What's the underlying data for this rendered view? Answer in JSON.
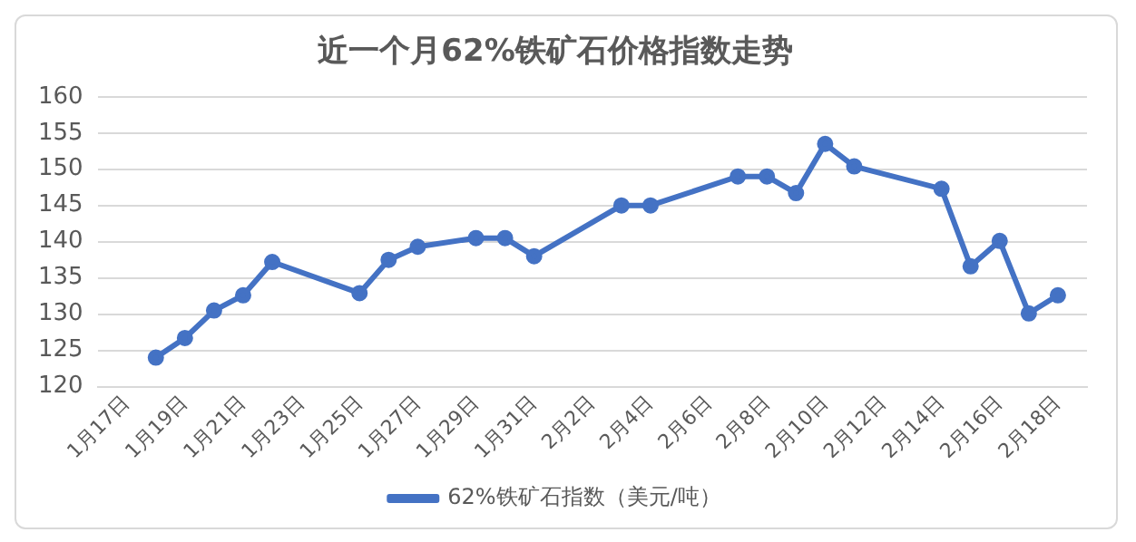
{
  "chart_data": {
    "type": "line",
    "title": "近一个月62%铁矿石价格指数走势",
    "x": [
      "--01-18",
      "--01-19",
      "--01-20",
      "--01-21",
      "--01-22",
      "--01-25",
      "--01-26",
      "--01-27",
      "--01-29",
      "--01-30",
      "--01-31",
      "--02-03",
      "--02-04",
      "--02-07",
      "--02-08",
      "--02-09",
      "--02-10",
      "--02-11",
      "--02-14",
      "--02-15",
      "--02-16",
      "--02-17",
      "--02-18"
    ],
    "series": [
      {
        "name": "62%铁矿石指数（美元/吨）",
        "color": "#4472c4",
        "values": [
          124,
          126.7,
          130.5,
          132.6,
          137.2,
          132.9,
          137.5,
          139.3,
          140.5,
          140.5,
          138,
          145,
          145,
          149,
          149,
          146.7,
          153.5,
          150.4,
          147.3,
          136.6,
          140.1,
          130.1,
          132.6
        ]
      }
    ],
    "xlim": [
      "--01-16",
      "--02-19"
    ],
    "xticks": [
      {
        "value": "--01-17",
        "label": "1月17日"
      },
      {
        "value": "--01-19",
        "label": "1月19日"
      },
      {
        "value": "--01-21",
        "label": "1月21日"
      },
      {
        "value": "--01-23",
        "label": "1月23日"
      },
      {
        "value": "--01-25",
        "label": "1月25日"
      },
      {
        "value": "--01-27",
        "label": "1月27日"
      },
      {
        "value": "--01-29",
        "label": "1月29日"
      },
      {
        "value": "--01-31",
        "label": "1月31日"
      },
      {
        "value": "--02-02",
        "label": "2月2日"
      },
      {
        "value": "--02-04",
        "label": "2月4日"
      },
      {
        "value": "--02-06",
        "label": "2月6日"
      },
      {
        "value": "--02-08",
        "label": "2月8日"
      },
      {
        "value": "--02-10",
        "label": "2月10日"
      },
      {
        "value": "--02-12",
        "label": "2月12日"
      },
      {
        "value": "--02-14",
        "label": "2月14日"
      },
      {
        "value": "--02-16",
        "label": "2月16日"
      },
      {
        "value": "--02-18",
        "label": "2月18日"
      }
    ],
    "ylim": [
      120,
      160
    ],
    "yticks": [
      120,
      125,
      130,
      135,
      140,
      145,
      150,
      155,
      160
    ],
    "grid": "y",
    "legend": "bottom",
    "marker": "circle",
    "line_style": "solid"
  }
}
